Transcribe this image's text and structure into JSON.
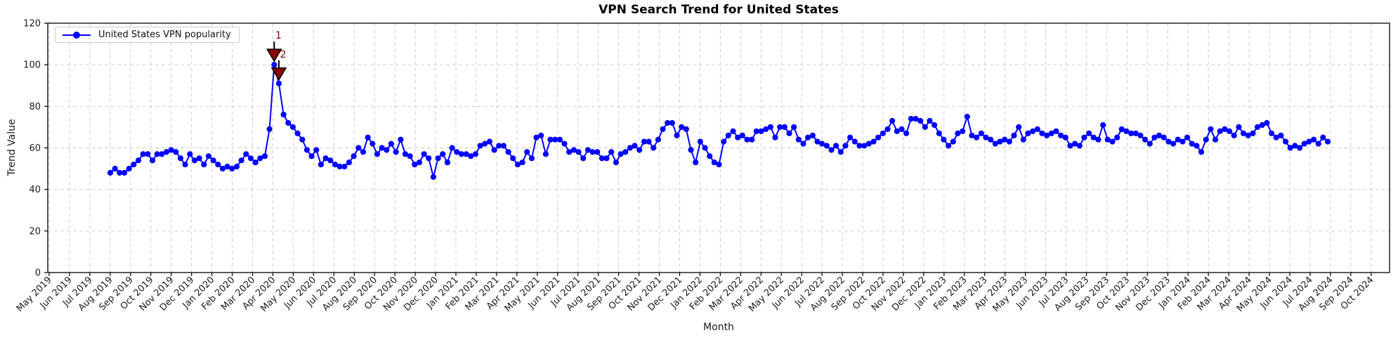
{
  "figure": {
    "title": "VPN Search Trend for United States"
  },
  "chart_data": {
    "type": "line",
    "title": "VPN Search Trend for United States",
    "xlabel": "Month",
    "ylabel": "Trend Value",
    "ylim": [
      0,
      120
    ],
    "yticks": [
      0,
      20,
      40,
      60,
      80,
      100,
      120
    ],
    "grid": true,
    "x_tick_labels": [
      "May 2019",
      "Jun 2019",
      "Jul 2019",
      "Aug 2019",
      "Sep 2019",
      "Oct 2019",
      "Nov 2019",
      "Dec 2019",
      "Jan 2020",
      "Feb 2020",
      "Mar 2020",
      "Apr 2020",
      "May 2020",
      "Jun 2020",
      "Jul 2020",
      "Aug 2020",
      "Sep 2020",
      "Oct 2020",
      "Nov 2020",
      "Dec 2020",
      "Jan 2021",
      "Feb 2021",
      "Mar 2021",
      "Apr 2021",
      "May 2021",
      "Jun 2021",
      "Jul 2021",
      "Aug 2021",
      "Sep 2021",
      "Oct 2021",
      "Nov 2021",
      "Dec 2021",
      "Jan 2022",
      "Feb 2022",
      "Mar 2022",
      "Apr 2022",
      "May 2022",
      "Jun 2022",
      "Jul 2022",
      "Aug 2022",
      "Sep 2022",
      "Oct 2022",
      "Nov 2022",
      "Dec 2022",
      "Jan 2023",
      "Feb 2023",
      "Mar 2023",
      "Apr 2023",
      "May 2023",
      "Jun 2023",
      "Jul 2023",
      "Aug 2023",
      "Sep 2023",
      "Oct 2023",
      "Nov 2023",
      "Dec 2023",
      "Jan 2024",
      "Feb 2024",
      "Mar 2024",
      "Apr 2024",
      "May 2024",
      "Jun 2024",
      "Jul 2024",
      "Aug 2024",
      "Sep 2024",
      "Oct 2024"
    ],
    "legend": {
      "position": "upper left",
      "entries": [
        "United States VPN popularity"
      ]
    },
    "series": [
      {
        "name": "United States VPN popularity",
        "color": "#0000ff",
        "marker": "circle",
        "frequency": "weekly",
        "start_week": "2019-08-04",
        "end_week": "2024-07-28",
        "values": [
          48,
          50,
          48,
          48,
          50,
          52,
          54,
          57,
          57,
          54,
          57,
          57,
          58,
          59,
          58,
          55,
          52,
          57,
          54,
          55,
          52,
          56,
          54,
          52,
          50,
          51,
          50,
          51,
          54,
          57,
          55,
          53,
          55,
          56,
          69,
          100,
          91,
          76,
          72,
          70,
          67,
          64,
          59,
          56,
          59,
          52,
          55,
          54,
          52,
          51,
          51,
          53,
          56,
          60,
          58,
          65,
          62,
          57,
          60,
          59,
          62,
          58,
          64,
          57,
          56,
          52,
          53,
          57,
          55,
          46,
          55,
          57,
          53,
          60,
          58,
          57,
          57,
          56,
          57,
          61,
          62,
          63,
          59,
          61,
          61,
          58,
          55,
          52,
          53,
          58,
          55,
          65,
          66,
          57,
          64,
          64,
          64,
          62,
          58,
          59,
          58,
          55,
          59,
          58,
          58,
          55,
          55,
          58,
          53,
          57,
          58,
          60,
          61,
          59,
          63,
          63,
          60,
          64,
          69,
          72,
          72,
          66,
          70,
          69,
          59,
          53,
          63,
          60,
          56,
          53,
          52,
          63,
          66,
          68,
          65,
          66,
          64,
          64,
          68,
          68,
          69,
          70,
          65,
          70,
          70,
          67,
          70,
          64,
          62,
          65,
          66,
          63,
          62,
          61,
          59,
          61,
          58,
          61,
          65,
          63,
          61,
          61,
          62,
          63,
          65,
          67,
          69,
          73,
          68,
          69,
          67,
          74,
          74,
          73,
          70,
          73,
          71,
          67,
          64,
          61,
          63,
          67,
          68,
          75,
          66,
          65,
          67,
          65,
          64,
          62,
          63,
          64,
          63,
          66,
          70,
          64,
          67,
          68,
          69,
          67,
          66,
          67,
          68,
          66,
          65,
          61,
          62,
          61,
          65,
          67,
          65,
          64,
          71,
          64,
          63,
          65,
          69,
          68,
          67,
          67,
          66,
          64,
          62,
          65,
          66,
          65,
          63,
          62,
          64,
          63,
          65,
          62,
          61,
          58,
          64,
          69,
          64,
          68,
          69,
          68,
          66,
          70,
          67,
          66,
          67,
          70,
          71,
          72,
          67,
          65,
          66,
          63,
          60,
          61,
          60,
          62,
          63,
          64,
          62,
          65,
          63
        ]
      }
    ],
    "annotations": [
      {
        "label": "1",
        "week_index": 35,
        "value": 100,
        "color": "#8b0000"
      },
      {
        "label": "2",
        "week_index": 36,
        "value": 91,
        "color": "#8b0000"
      }
    ]
  }
}
